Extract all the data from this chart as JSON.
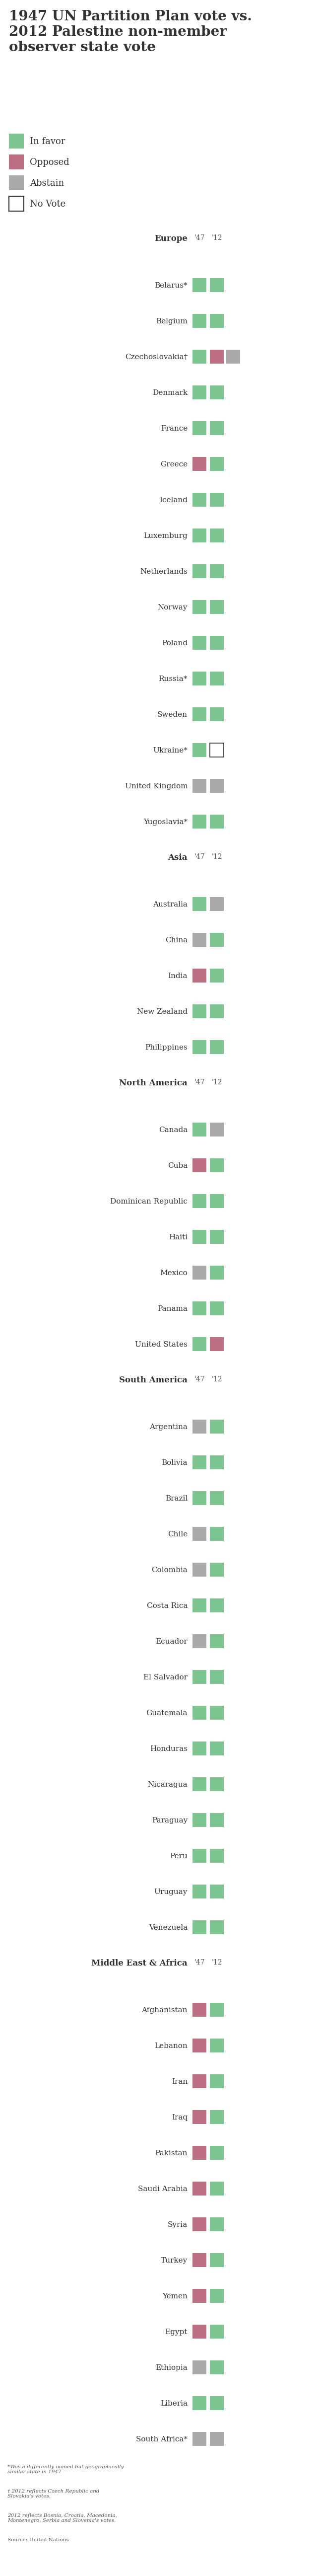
{
  "title": "1947 UN Partition Plan vote vs.\n2012 Palestine non-member\nobserver state vote",
  "colors": {
    "favor": "#7DC490",
    "oppose": "#BC6E82",
    "abstain": "#AAAAAA",
    "novote": "#FFFFFF",
    "novote_border": "#333333"
  },
  "legend": [
    "In favor",
    "Opposed",
    "Abstain",
    "No Vote"
  ],
  "sections": [
    {
      "name": "Europe",
      "countries": [
        {
          "name": "Belarus*",
          "v47": "favor",
          "v12": "favor"
        },
        {
          "name": "Belgium",
          "v47": "favor",
          "v12": "favor"
        },
        {
          "name": "Czechoslovakia†",
          "v47": "favor",
          "v12": "oppose",
          "v12b": "abstain"
        },
        {
          "name": "Denmark",
          "v47": "favor",
          "v12": "favor"
        },
        {
          "name": "France",
          "v47": "favor",
          "v12": "favor"
        },
        {
          "name": "Greece",
          "v47": "oppose",
          "v12": "favor"
        },
        {
          "name": "Iceland",
          "v47": "favor",
          "v12": "favor"
        },
        {
          "name": "Luxemburg",
          "v47": "favor",
          "v12": "favor"
        },
        {
          "name": "Netherlands",
          "v47": "favor",
          "v12": "favor"
        },
        {
          "name": "Norway",
          "v47": "favor",
          "v12": "favor"
        },
        {
          "name": "Poland",
          "v47": "favor",
          "v12": "favor"
        },
        {
          "name": "Russia*",
          "v47": "favor",
          "v12": "favor"
        },
        {
          "name": "Sweden",
          "v47": "favor",
          "v12": "favor"
        },
        {
          "name": "Ukraine*",
          "v47": "favor",
          "v12": "novote"
        },
        {
          "name": "United Kingdom",
          "v47": "abstain",
          "v12": "abstain"
        },
        {
          "name": "Yugoslavia*",
          "v47": "favor",
          "v12": "favor"
        }
      ]
    },
    {
      "name": "Asia",
      "countries": [
        {
          "name": "Australia",
          "v47": "favor",
          "v12": "abstain"
        },
        {
          "name": "China",
          "v47": "abstain",
          "v12": "favor"
        },
        {
          "name": "India",
          "v47": "oppose",
          "v12": "favor"
        },
        {
          "name": "New Zealand",
          "v47": "favor",
          "v12": "favor"
        },
        {
          "name": "Philippines",
          "v47": "favor",
          "v12": "favor"
        }
      ]
    },
    {
      "name": "North America",
      "countries": [
        {
          "name": "Canada",
          "v47": "favor",
          "v12": "abstain"
        },
        {
          "name": "Cuba",
          "v47": "oppose",
          "v12": "favor"
        },
        {
          "name": "Dominican Republic",
          "v47": "favor",
          "v12": "favor"
        },
        {
          "name": "Haiti",
          "v47": "favor",
          "v12": "favor"
        },
        {
          "name": "Mexico",
          "v47": "abstain",
          "v12": "favor"
        },
        {
          "name": "Panama",
          "v47": "favor",
          "v12": "favor"
        },
        {
          "name": "United States",
          "v47": "favor",
          "v12": "oppose"
        }
      ]
    },
    {
      "name": "South America",
      "countries": [
        {
          "name": "Argentina",
          "v47": "abstain",
          "v12": "favor"
        },
        {
          "name": "Bolivia",
          "v47": "favor",
          "v12": "favor"
        },
        {
          "name": "Brazil",
          "v47": "favor",
          "v12": "favor"
        },
        {
          "name": "Chile",
          "v47": "abstain",
          "v12": "favor"
        },
        {
          "name": "Colombia",
          "v47": "abstain",
          "v12": "favor"
        },
        {
          "name": "Costa Rica",
          "v47": "favor",
          "v12": "favor"
        },
        {
          "name": "Ecuador",
          "v47": "abstain",
          "v12": "favor"
        },
        {
          "name": "El Salvador",
          "v47": "favor",
          "v12": "favor"
        },
        {
          "name": "Guatemala",
          "v47": "favor",
          "v12": "favor"
        },
        {
          "name": "Honduras",
          "v47": "favor",
          "v12": "favor"
        },
        {
          "name": "Nicaragua",
          "v47": "favor",
          "v12": "favor"
        },
        {
          "name": "Paraguay",
          "v47": "favor",
          "v12": "favor"
        },
        {
          "name": "Peru",
          "v47": "favor",
          "v12": "favor"
        },
        {
          "name": "Uruguay",
          "v47": "favor",
          "v12": "favor"
        },
        {
          "name": "Venezuela",
          "v47": "favor",
          "v12": "favor"
        }
      ]
    },
    {
      "name": "Middle East & Africa",
      "countries": [
        {
          "name": "Afghanistan",
          "v47": "oppose",
          "v12": "favor"
        },
        {
          "name": "Lebanon",
          "v47": "oppose",
          "v12": "favor"
        },
        {
          "name": "Iran",
          "v47": "oppose",
          "v12": "favor"
        },
        {
          "name": "Iraq",
          "v47": "oppose",
          "v12": "favor"
        },
        {
          "name": "Pakistan",
          "v47": "oppose",
          "v12": "favor"
        },
        {
          "name": "Saudi Arabia",
          "v47": "oppose",
          "v12": "favor"
        },
        {
          "name": "Syria",
          "v47": "oppose",
          "v12": "favor"
        },
        {
          "name": "Turkey",
          "v47": "oppose",
          "v12": "favor"
        },
        {
          "name": "Yemen",
          "v47": "oppose",
          "v12": "favor"
        },
        {
          "name": "Egypt",
          "v47": "oppose",
          "v12": "favor"
        },
        {
          "name": "Ethiopia",
          "v47": "abstain",
          "v12": "favor"
        },
        {
          "name": "Liberia",
          "v47": "favor",
          "v12": "favor"
        },
        {
          "name": "South Africa*",
          "v47": "abstain",
          "v12": "abstain"
        }
      ]
    }
  ],
  "footnotes": [
    "*Was a differently named but geographically\nsimilar state in 1947",
    "† 2012 reflects Czech Republic and\nSlovakia's votes.",
    "⁡2012 reflects Bosnia, Croatia, Macedonia,\nMontenegro, Serbia and Slovenia's votes.",
    "Source: United Nations"
  ]
}
